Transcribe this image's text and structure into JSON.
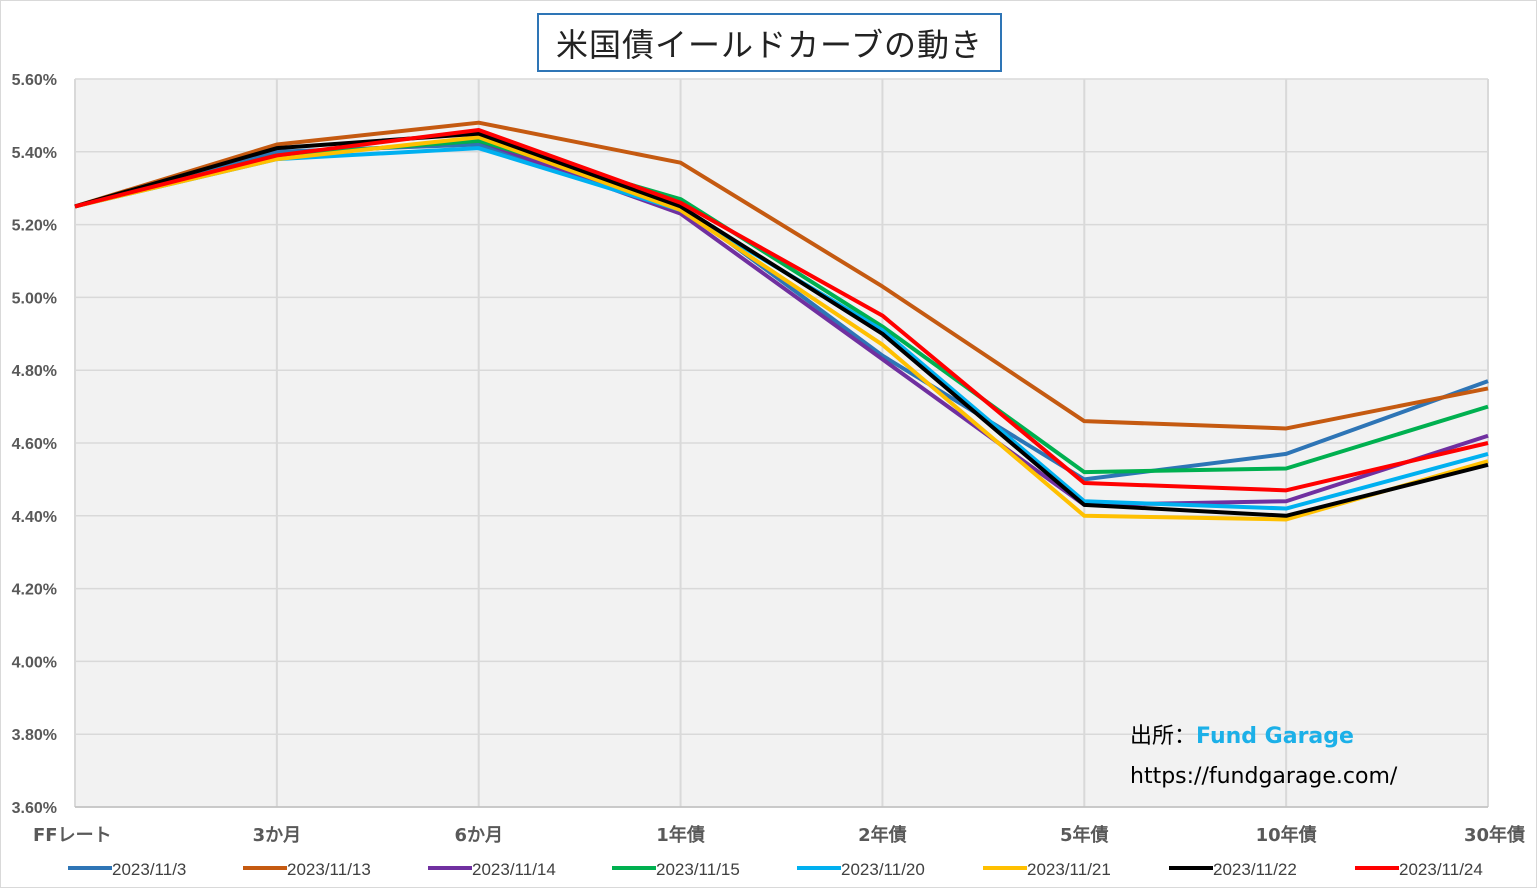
{
  "chart_data": {
    "type": "line",
    "title": "米国債イールドカーブの動き",
    "categories": [
      "FFレート",
      "3か月",
      "6か月",
      "1年債",
      "2年債",
      "5年債",
      "10年債",
      "30年債"
    ],
    "y_tick_labels": [
      "3.60%",
      "3.80%",
      "4.00%",
      "4.20%",
      "4.40%",
      "4.60%",
      "4.80%",
      "5.00%",
      "5.20%",
      "5.40%",
      "5.60%"
    ],
    "ylim": [
      3.6,
      5.6
    ],
    "grid": true,
    "legend_position": "bottom",
    "series": [
      {
        "name": "2023/11/3",
        "color": "#2e75b6",
        "values": [
          5.25,
          5.4,
          5.42,
          5.25,
          4.84,
          4.5,
          4.57,
          4.77
        ]
      },
      {
        "name": "2023/11/13",
        "color": "#c55a11",
        "values": [
          5.25,
          5.42,
          5.48,
          5.37,
          5.03,
          4.66,
          4.64,
          4.75
        ]
      },
      {
        "name": "2023/11/14",
        "color": "#7030a0",
        "values": [
          5.25,
          5.39,
          5.43,
          5.23,
          4.83,
          4.43,
          4.44,
          4.62
        ]
      },
      {
        "name": "2023/11/15",
        "color": "#00b050",
        "values": [
          5.25,
          5.39,
          5.43,
          5.27,
          4.92,
          4.52,
          4.53,
          4.7
        ]
      },
      {
        "name": "2023/11/20",
        "color": "#00b0f0",
        "values": [
          5.25,
          5.38,
          5.41,
          5.24,
          4.91,
          4.44,
          4.42,
          4.57
        ]
      },
      {
        "name": "2023/11/21",
        "color": "#ffc000",
        "values": [
          5.25,
          5.38,
          5.44,
          5.24,
          4.87,
          4.4,
          4.39,
          4.55
        ]
      },
      {
        "name": "2023/11/22",
        "color": "#000000",
        "values": [
          5.25,
          5.41,
          5.45,
          5.25,
          4.9,
          4.43,
          4.4,
          4.54
        ]
      },
      {
        "name": "2023/11/24",
        "color": "#ff0000",
        "values": [
          5.25,
          5.39,
          5.46,
          5.26,
          4.95,
          4.49,
          4.47,
          4.6
        ]
      }
    ]
  },
  "source": {
    "label": "出所：",
    "name": "Fund Garage",
    "url": "https://fundgarage.com/"
  }
}
